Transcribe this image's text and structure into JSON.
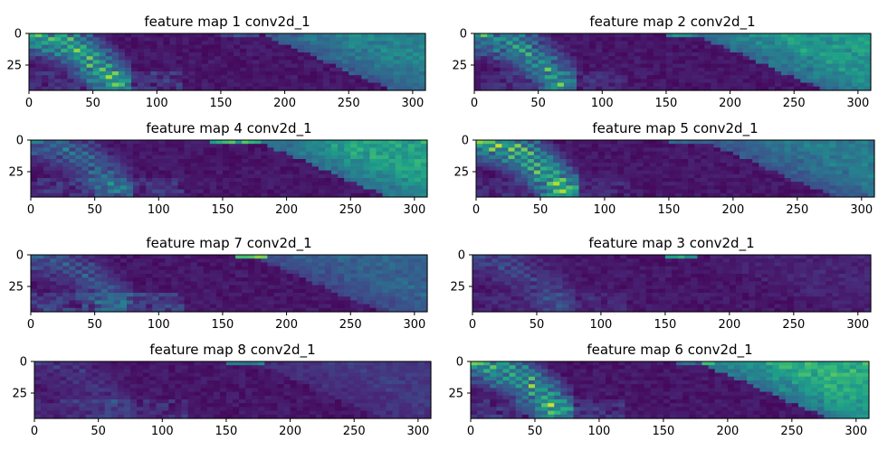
{
  "chart_data": [
    {
      "type": "heatmap",
      "title": "feature map 1 conv2d_1",
      "xticks": [
        0,
        50,
        100,
        150,
        200,
        250,
        300
      ],
      "yticks": [
        0,
        25
      ],
      "xlim": [
        0,
        310
      ],
      "ylim": [
        45,
        0
      ],
      "colormap": "viridis",
      "features": {
        "left_arc": 0.95,
        "band": 0.45,
        "band_start": 180,
        "top_hot": [
          150,
          180,
          0.2
        ],
        "edge_noise": 0.15
      }
    },
    {
      "type": "heatmap",
      "title": "feature map 2 conv2d_1",
      "xticks": [
        0,
        50,
        100,
        150,
        200,
        250,
        300
      ],
      "yticks": [
        0,
        25
      ],
      "xlim": [
        0,
        310
      ],
      "ylim": [
        45,
        0
      ],
      "colormap": "viridis",
      "features": {
        "left_arc": 0.75,
        "band": 0.55,
        "band_start": 170,
        "top_hot": [
          150,
          175,
          0.45
        ],
        "edge_noise": 0.1
      }
    },
    {
      "type": "heatmap",
      "title": "feature map 4 conv2d_1",
      "xticks": [
        0,
        50,
        100,
        150,
        200,
        250,
        300
      ],
      "yticks": [
        0,
        25
      ],
      "xlim": [
        0,
        310
      ],
      "ylim": [
        45,
        0
      ],
      "colormap": "viridis",
      "features": {
        "left_arc": 0.45,
        "band": 0.6,
        "band_start": 175,
        "top_hot": [
          140,
          180,
          0.65
        ],
        "edge_noise": 0.15
      }
    },
    {
      "type": "heatmap",
      "title": "feature map 5 conv2d_1",
      "xticks": [
        0,
        50,
        100,
        150,
        200,
        250,
        300
      ],
      "yticks": [
        0,
        25
      ],
      "xlim": [
        0,
        310
      ],
      "ylim": [
        45,
        0
      ],
      "colormap": "viridis",
      "features": {
        "left_arc": 1.0,
        "band": 0.4,
        "band_start": 175,
        "top_hot": [
          150,
          180,
          0.3
        ],
        "edge_noise": 0.1
      }
    },
    {
      "type": "heatmap",
      "title": "feature map 7 conv2d_1",
      "xticks": [
        0,
        50,
        100,
        150,
        200,
        250,
        300
      ],
      "yticks": [
        0,
        25
      ],
      "xlim": [
        0,
        310
      ],
      "ylim": [
        45,
        0
      ],
      "colormap": "viridis",
      "features": {
        "left_arc": 0.35,
        "band": 0.3,
        "band_start": 170,
        "top_hot": [
          160,
          185,
          0.7
        ],
        "edge_noise": 0.2
      }
    },
    {
      "type": "heatmap",
      "title": "feature map 3 conv2d_1",
      "xticks": [
        0,
        50,
        100,
        150,
        200,
        250,
        300
      ],
      "yticks": [
        0,
        25
      ],
      "xlim": [
        0,
        310
      ],
      "ylim": [
        45,
        0
      ],
      "colormap": "viridis",
      "features": {
        "left_arc": 0.25,
        "band": 0.05,
        "band_start": 180,
        "top_hot": [
          150,
          175,
          0.6
        ],
        "edge_noise": 0.08
      }
    },
    {
      "type": "heatmap",
      "title": "feature map 8 conv2d_1",
      "xticks": [
        0,
        50,
        100,
        150,
        200,
        250,
        300
      ],
      "yticks": [
        0,
        25
      ],
      "xlim": [
        0,
        310
      ],
      "ylim": [
        45,
        0
      ],
      "colormap": "viridis",
      "features": {
        "left_arc": 0.15,
        "band": 0.12,
        "band_start": 170,
        "top_hot": [
          150,
          180,
          0.4
        ],
        "edge_noise": 0.12
      }
    },
    {
      "type": "heatmap",
      "title": "feature map 6 conv2d_1",
      "xticks": [
        0,
        50,
        100,
        150,
        200,
        250,
        300
      ],
      "yticks": [
        0,
        25
      ],
      "xlim": [
        0,
        310
      ],
      "ylim": [
        45,
        0
      ],
      "colormap": "viridis",
      "features": {
        "left_arc": 0.85,
        "band": 0.65,
        "band_start": 175,
        "top_hot": [
          160,
          190,
          0.35
        ],
        "edge_noise": 0.15
      }
    }
  ]
}
